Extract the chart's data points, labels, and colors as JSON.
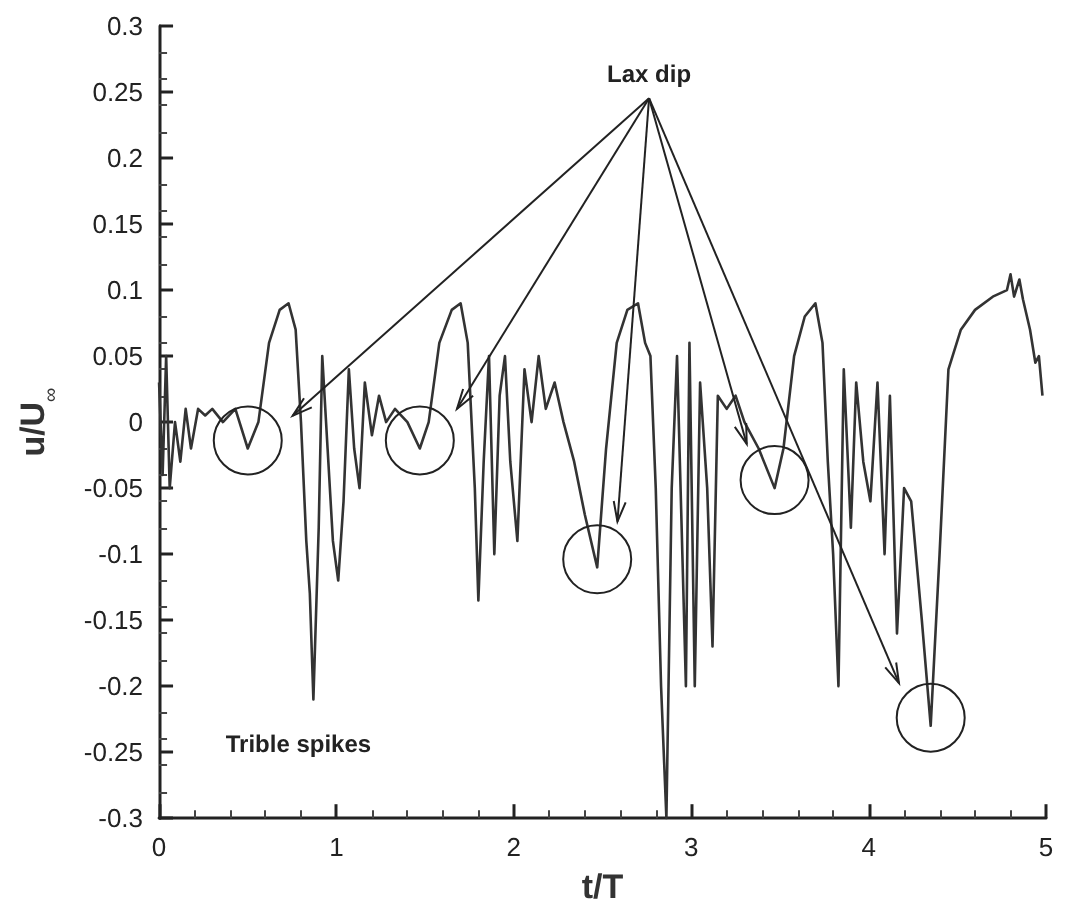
{
  "chart_data": {
    "type": "line",
    "xlabel": "t/T",
    "ylabel": "u/U$_{∞}$",
    "annotations": [
      "Lax dip",
      "Trible spikes"
    ],
    "xlim": [
      0,
      5
    ],
    "xticks": [
      0,
      1,
      2,
      3,
      4,
      5
    ],
    "ylim": [
      -0.3,
      0.3
    ],
    "yticks": [
      -0.3,
      -0.25,
      -0.2,
      -0.15,
      -0.1,
      -0.05,
      0,
      0.05,
      0.1,
      0.15,
      0.2,
      0.25,
      0.3
    ],
    "grid": false,
    "marker": "none",
    "line_style": "solid",
    "series": [
      {
        "color": "#333333",
        "x": [
          0,
          0.02,
          0.04,
          0.06,
          0.09,
          0.12,
          0.15,
          0.18,
          0.22,
          0.26,
          0.3,
          0.36,
          0.43,
          0.5,
          0.56,
          0.62,
          0.68,
          0.73,
          0.77,
          0.8,
          0.83,
          0.85,
          0.87,
          0.9,
          0.92,
          0.95,
          0.98,
          1.01,
          1.04,
          1.07,
          1.1,
          1.13,
          1.16,
          1.2,
          1.24,
          1.28,
          1.33,
          1.4,
          1.47,
          1.52,
          1.58,
          1.65,
          1.7,
          1.74,
          1.78,
          1.8,
          1.83,
          1.86,
          1.89,
          1.92,
          1.95,
          1.98,
          2.02,
          2.06,
          2.1,
          2.14,
          2.18,
          2.23,
          2.28,
          2.34,
          2.4,
          2.47,
          2.52,
          2.58,
          2.64,
          2.7,
          2.74,
          2.77,
          2.8,
          2.83,
          2.86,
          2.89,
          2.92,
          2.95,
          2.97,
          2.99,
          3.02,
          3.05,
          3.09,
          3.12,
          3.15,
          3.2,
          3.25,
          3.3,
          3.38,
          3.47,
          3.52,
          3.58,
          3.64,
          3.7,
          3.74,
          3.77,
          3.8,
          3.83,
          3.86,
          3.9,
          3.93,
          3.97,
          4.01,
          4.05,
          4.09,
          4.12,
          4.16,
          4.2,
          4.24,
          4.3,
          4.35,
          4.4,
          4.45,
          4.52,
          4.6,
          4.7,
          4.78,
          4.8,
          4.82,
          4.85,
          4.87,
          4.91,
          4.94,
          4.96,
          4.98
        ],
        "values": [
          0.03,
          -0.04,
          0.05,
          -0.05,
          0.0,
          -0.03,
          0.01,
          -0.02,
          0.01,
          0.005,
          0.01,
          0.0,
          0.01,
          -0.02,
          0.0,
          0.06,
          0.085,
          0.09,
          0.07,
          0.0,
          -0.09,
          -0.13,
          -0.21,
          -0.08,
          0.05,
          -0.02,
          -0.09,
          -0.12,
          -0.06,
          0.04,
          -0.02,
          -0.05,
          0.03,
          -0.01,
          0.02,
          0.0,
          0.01,
          0.0,
          -0.02,
          0.0,
          0.06,
          0.085,
          0.09,
          0.06,
          -0.05,
          -0.135,
          -0.03,
          0.05,
          -0.1,
          0.02,
          0.05,
          -0.03,
          -0.09,
          0.04,
          0.0,
          0.05,
          0.01,
          0.03,
          0.0,
          -0.03,
          -0.07,
          -0.11,
          -0.02,
          0.06,
          0.085,
          0.09,
          0.06,
          0.05,
          -0.05,
          -0.2,
          -0.3,
          -0.05,
          0.05,
          -0.1,
          -0.2,
          0.06,
          -0.2,
          0.03,
          -0.05,
          -0.17,
          0.02,
          0.01,
          0.02,
          0.0,
          -0.02,
          -0.05,
          -0.02,
          0.05,
          0.08,
          0.09,
          0.06,
          -0.03,
          -0.1,
          -0.2,
          0.04,
          -0.08,
          0.03,
          -0.03,
          -0.06,
          0.03,
          -0.1,
          0.02,
          -0.16,
          -0.05,
          -0.06,
          -0.15,
          -0.23,
          -0.1,
          0.04,
          0.07,
          0.085,
          0.095,
          0.1,
          0.112,
          0.095,
          0.108,
          0.093,
          0.07,
          0.045,
          0.05,
          0.02
        ]
      }
    ]
  }
}
